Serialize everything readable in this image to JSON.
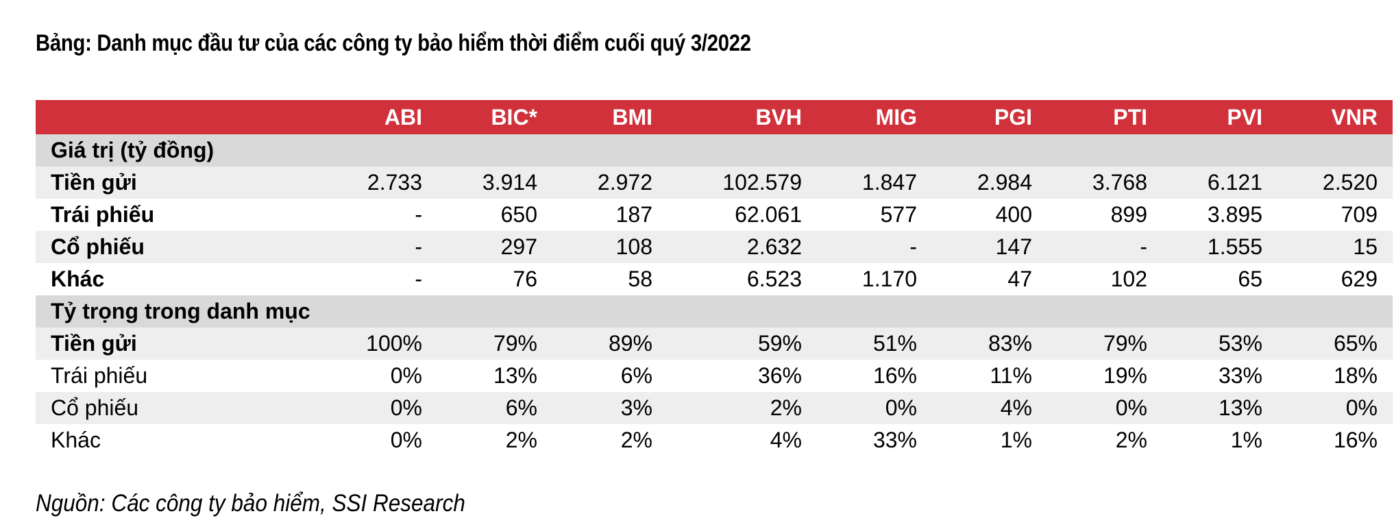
{
  "title": "Bảng: Danh mục đầu tư của các công ty bảo hiểm thời điểm cuối quý 3/2022",
  "columns": [
    "ABI",
    "BIC*",
    "BMI",
    "BVH",
    "MIG",
    "PGI",
    "PTI",
    "PVI",
    "VNR"
  ],
  "sections": [
    {
      "heading": "Giá trị (tỷ đồng)",
      "rows": [
        {
          "label": "Tiền gửi",
          "values": [
            "2.733",
            "3.914",
            "2.972",
            "102.579",
            "1.847",
            "2.984",
            "3.768",
            "6.121",
            "2.520"
          ]
        },
        {
          "label": "Trái phiếu",
          "values": [
            "-",
            "650",
            "187",
            "62.061",
            "577",
            "400",
            "899",
            "3.895",
            "709"
          ]
        },
        {
          "label": "Cổ phiếu",
          "values": [
            "-",
            "297",
            "108",
            "2.632",
            "-",
            "147",
            "-",
            "1.555",
            "15"
          ]
        },
        {
          "label": "Khác",
          "values": [
            "-",
            "76",
            "58",
            "6.523",
            "1.170",
            "47",
            "102",
            "65",
            "629"
          ]
        }
      ]
    },
    {
      "heading": "Tỷ trọng trong danh mục",
      "rows": [
        {
          "label": "Tiền gửi",
          "values": [
            "100%",
            "79%",
            "89%",
            "59%",
            "51%",
            "83%",
            "79%",
            "53%",
            "65%"
          ]
        },
        {
          "label": "Trái phiếu",
          "values": [
            "0%",
            "13%",
            "6%",
            "36%",
            "16%",
            "11%",
            "19%",
            "33%",
            "18%"
          ]
        },
        {
          "label": "Cổ phiếu",
          "values": [
            "0%",
            "6%",
            "3%",
            "2%",
            "0%",
            "4%",
            "0%",
            "13%",
            "0%"
          ]
        },
        {
          "label": "Khác",
          "values": [
            "0%",
            "2%",
            "2%",
            "4%",
            "33%",
            "1%",
            "2%",
            "1%",
            "16%"
          ]
        }
      ]
    }
  ],
  "source": "Nguồn: Các công ty bảo hiểm, SSI Research",
  "colors": {
    "header_bg": "#d0313b",
    "header_text": "#ffffff",
    "section_bg": "#d9d9d9",
    "row_shade": "#eeeeee"
  }
}
